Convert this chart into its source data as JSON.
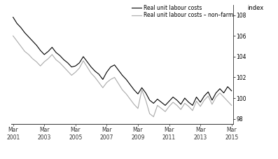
{
  "title": "",
  "ylabel_right": "index",
  "ylim": [
    97.5,
    109.0
  ],
  "yticks": [
    98,
    100,
    102,
    104,
    106,
    108
  ],
  "background_color": "#ffffff",
  "line1_color": "#000000",
  "line2_color": "#aaaaaa",
  "line1_label": "Real unit labour costs",
  "line2_label": "Real unit labour costs – non–farm",
  "xtick_labels": [
    "Mar\n2001",
    "Mar\n2003",
    "Mar\n2005",
    "Mar\n2007",
    "Mar\n2009",
    "Mar\n2011",
    "Mar\n2013",
    "Mar\n2015"
  ],
  "xtick_positions": [
    0,
    8,
    16,
    24,
    32,
    40,
    48,
    56
  ],
  "line1_y": [
    107.8,
    107.2,
    106.8,
    106.3,
    105.9,
    105.5,
    105.1,
    104.6,
    104.2,
    104.5,
    104.9,
    104.4,
    104.1,
    103.7,
    103.4,
    103.0,
    103.1,
    103.4,
    104.0,
    103.5,
    103.0,
    102.6,
    102.3,
    101.8,
    102.5,
    103.0,
    103.2,
    102.7,
    102.2,
    101.8,
    101.3,
    100.8,
    100.4,
    101.0,
    100.5,
    99.8,
    99.5,
    99.9,
    99.6,
    99.3,
    99.7,
    100.1,
    99.8,
    99.4,
    100.0,
    99.6,
    99.3,
    100.1,
    99.6,
    100.2,
    100.6,
    99.8,
    100.5,
    100.9,
    100.5,
    101.1,
    100.7
  ],
  "line2_y": [
    106.0,
    105.5,
    105.0,
    104.5,
    104.2,
    103.8,
    103.5,
    103.1,
    103.5,
    103.8,
    104.2,
    103.7,
    103.4,
    103.0,
    102.6,
    102.2,
    102.5,
    102.9,
    103.6,
    103.0,
    102.4,
    102.0,
    101.5,
    101.0,
    101.5,
    101.8,
    102.0,
    101.4,
    100.8,
    100.4,
    99.9,
    99.4,
    99.0,
    100.8,
    99.8,
    98.5,
    98.2,
    99.3,
    99.0,
    98.7,
    99.2,
    99.6,
    99.3,
    98.9,
    99.5,
    99.2,
    98.8,
    99.7,
    99.2,
    99.8,
    100.2,
    99.4,
    100.1,
    100.5,
    100.1,
    99.7,
    99.3
  ],
  "linewidth": 0.8,
  "legend_fontsize": 5.5,
  "tick_fontsize": 5.5,
  "ylabel_fontsize": 6.0
}
